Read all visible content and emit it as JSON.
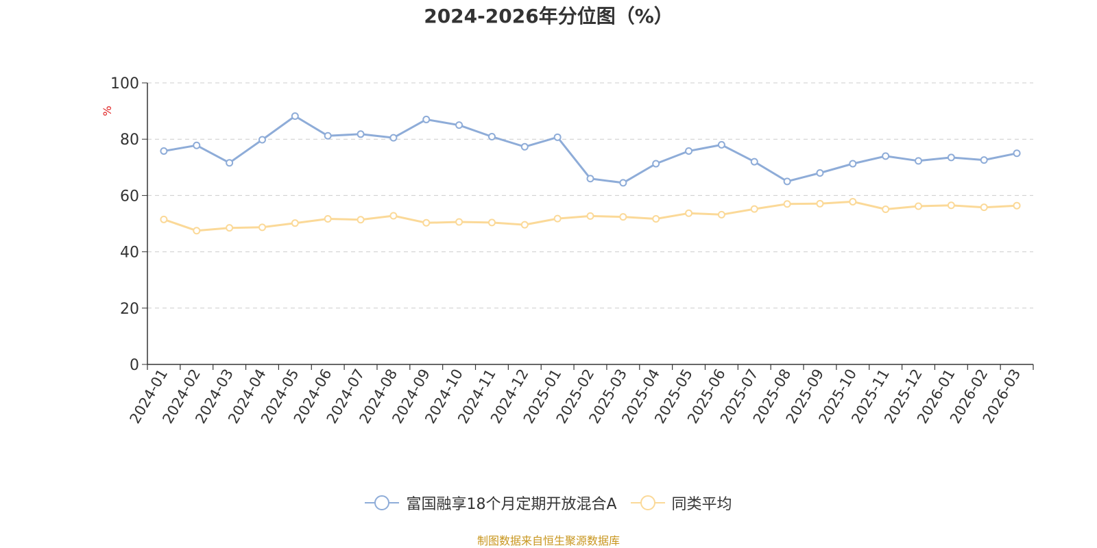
{
  "chart_data": {
    "type": "line",
    "title": "2024-2026年分位图（%）",
    "ylabel": "%",
    "xlabel": "",
    "ylim": [
      0,
      100
    ],
    "yticks": [
      0,
      20,
      40,
      60,
      80,
      100
    ],
    "grid": true,
    "legend_position": "bottom",
    "categories": [
      "2024-01",
      "2024-02",
      "2024-03",
      "2024-04",
      "2024-05",
      "2024-06",
      "2024-07",
      "2024-08",
      "2024-09",
      "2024-10",
      "2024-11",
      "2024-12",
      "2025-01",
      "2025-02",
      "2025-03",
      "2025-04",
      "2025-05",
      "2025-06",
      "2025-07",
      "2025-08",
      "2025-09",
      "2025-10",
      "2025-11",
      "2025-12",
      "2026-01",
      "2026-02",
      "2026-03"
    ],
    "series": [
      {
        "name": "富国融享18个月定期开放混合A",
        "color": "#8eacd8",
        "values": [
          75.8,
          77.8,
          71.6,
          79.8,
          88.2,
          81.2,
          81.8,
          80.5,
          87.0,
          85.0,
          80.9,
          77.3,
          80.7,
          66.0,
          64.5,
          71.3,
          75.8,
          78.0,
          72.0,
          65.0,
          68.0,
          71.3,
          74.0,
          72.3,
          73.5,
          72.6,
          75.0
        ]
      },
      {
        "name": "同类平均",
        "color": "#fbd998",
        "values": [
          51.5,
          47.5,
          48.5,
          48.7,
          50.2,
          51.7,
          51.4,
          52.8,
          50.3,
          50.6,
          50.4,
          49.6,
          51.8,
          52.7,
          52.4,
          51.7,
          53.7,
          53.2,
          55.2,
          57.0,
          57.1,
          57.8,
          55.1,
          56.2,
          56.5,
          55.8,
          56.4
        ]
      }
    ]
  },
  "source_text": "制图数据来自恒生聚源数据库",
  "colors": {
    "axis": "#333333",
    "grid": "#cccccc",
    "ylabel": "#e02020",
    "source": "#c8961e"
  }
}
